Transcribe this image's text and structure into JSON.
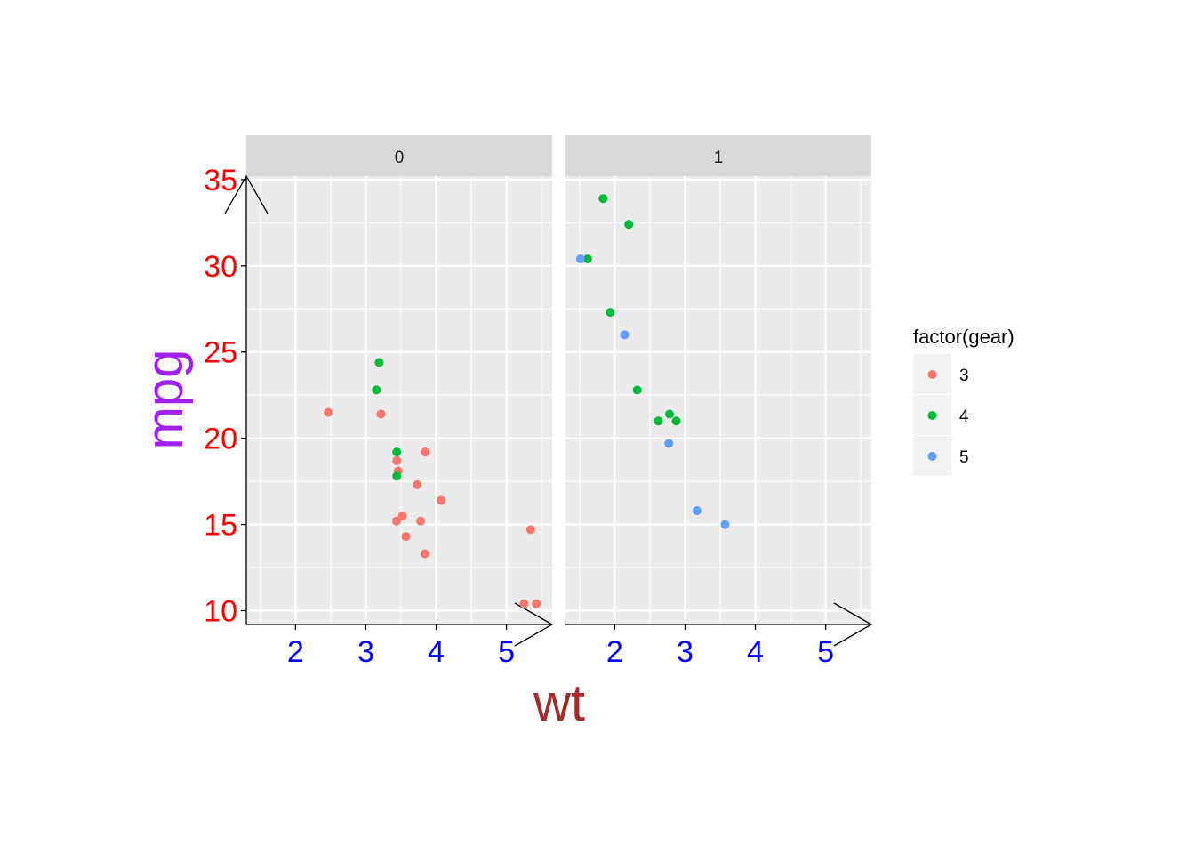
{
  "chart_data": {
    "type": "scatter",
    "facet_var": "am",
    "panels": [
      {
        "label": "0",
        "points": [
          {
            "gear": "3",
            "x": 2.465,
            "y": 21.5
          },
          {
            "gear": "3",
            "x": 3.215,
            "y": 21.4
          },
          {
            "gear": "3",
            "x": 3.44,
            "y": 18.7
          },
          {
            "gear": "3",
            "x": 3.46,
            "y": 18.1
          },
          {
            "gear": "3",
            "x": 3.57,
            "y": 14.3
          },
          {
            "gear": "3",
            "x": 4.07,
            "y": 16.4
          },
          {
            "gear": "3",
            "x": 3.73,
            "y": 17.3
          },
          {
            "gear": "3",
            "x": 3.78,
            "y": 15.2
          },
          {
            "gear": "3",
            "x": 5.25,
            "y": 10.4
          },
          {
            "gear": "3",
            "x": 5.424,
            "y": 10.4
          },
          {
            "gear": "3",
            "x": 5.345,
            "y": 14.7
          },
          {
            "gear": "3",
            "x": 3.52,
            "y": 15.5
          },
          {
            "gear": "3",
            "x": 3.435,
            "y": 15.2
          },
          {
            "gear": "3",
            "x": 3.84,
            "y": 13.3
          },
          {
            "gear": "3",
            "x": 3.845,
            "y": 19.2
          },
          {
            "gear": "4",
            "x": 3.19,
            "y": 24.4
          },
          {
            "gear": "4",
            "x": 3.15,
            "y": 22.8
          },
          {
            "gear": "4",
            "x": 3.44,
            "y": 19.2
          },
          {
            "gear": "4",
            "x": 3.44,
            "y": 17.8
          }
        ]
      },
      {
        "label": "1",
        "points": [
          {
            "gear": "4",
            "x": 2.62,
            "y": 21.0
          },
          {
            "gear": "4",
            "x": 2.875,
            "y": 21.0
          },
          {
            "gear": "4",
            "x": 2.32,
            "y": 22.8
          },
          {
            "gear": "4",
            "x": 2.2,
            "y": 32.4
          },
          {
            "gear": "4",
            "x": 1.615,
            "y": 30.4
          },
          {
            "gear": "4",
            "x": 1.835,
            "y": 33.9
          },
          {
            "gear": "4",
            "x": 1.935,
            "y": 27.3
          },
          {
            "gear": "4",
            "x": 2.78,
            "y": 21.4
          },
          {
            "gear": "5",
            "x": 2.14,
            "y": 26.0
          },
          {
            "gear": "5",
            "x": 1.513,
            "y": 30.4
          },
          {
            "gear": "5",
            "x": 3.17,
            "y": 15.8
          },
          {
            "gear": "5",
            "x": 2.77,
            "y": 19.7
          },
          {
            "gear": "5",
            "x": 3.57,
            "y": 15.0
          }
        ]
      }
    ],
    "xlabel": "wt",
    "ylabel": "mpg",
    "xlim": [
      1.3,
      5.65
    ],
    "ylim": [
      9.2,
      35.2
    ],
    "xticks": [
      2,
      3,
      4,
      5
    ],
    "yticks": [
      10,
      15,
      20,
      25,
      30,
      35
    ],
    "grid": true,
    "legend": {
      "title": "factor(gear)",
      "position": "right",
      "entries": [
        {
          "label": "3",
          "color": "#F8766D"
        },
        {
          "label": "4",
          "color": "#00BA38"
        },
        {
          "label": "5",
          "color": "#619CFF"
        }
      ]
    },
    "colors": {
      "panel_bg": "#EBEBEB",
      "strip_bg": "#D9D9D9",
      "grid": "#FFFFFF",
      "ytick_text": "#FF0000",
      "xtick_text": "#0000FF",
      "xlabel_text": "#A52A2A",
      "ylabel_text": "#A020F0",
      "axis_line": "#000000"
    }
  }
}
